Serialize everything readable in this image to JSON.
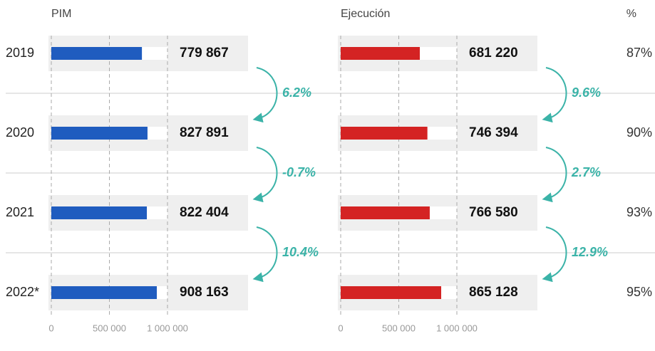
{
  "chart_data": [
    {
      "type": "bar",
      "title": "PIM",
      "categories": [
        "2019",
        "2020",
        "2021",
        "2022*"
      ],
      "values": [
        779867,
        827891,
        822404,
        908163
      ],
      "value_labels": [
        "779 867",
        "827 891",
        "822 404",
        "908 163"
      ],
      "color": "#1f5cbf",
      "xlim": [
        0,
        1000000
      ],
      "xticks": [
        0,
        {
          "value": 500000,
          "label": "500 000"
        },
        {
          "value": 1000000,
          "label": "1 000 000"
        }
      ],
      "grid": true,
      "changes": {
        "values": [
          6.2,
          -0.7,
          10.4
        ],
        "value_labels": [
          "6.2%",
          "-0.7%",
          "10.4%"
        ]
      }
    },
    {
      "type": "bar",
      "title": "Ejecución",
      "values": [
        681220,
        746394,
        766580,
        865128
      ],
      "value_labels": [
        "681 220",
        "746 394",
        "766 580",
        "865 128"
      ],
      "color": "#d42323",
      "xlim": [
        0,
        1000000
      ],
      "xticks": [
        0,
        {
          "value": 500000,
          "label": "500 000"
        },
        {
          "value": 1000000,
          "label": "1 000 000"
        }
      ],
      "grid": true,
      "changes": {
        "values": [
          9.6,
          2.7,
          12.9
        ],
        "value_labels": [
          "9.6%",
          "2.7%",
          "12.9%"
        ]
      },
      "share": {
        "title": "%",
        "values": [
          87,
          90,
          93,
          95
        ],
        "value_labels": [
          "87%",
          "90%",
          "93%",
          "95%"
        ]
      }
    }
  ]
}
